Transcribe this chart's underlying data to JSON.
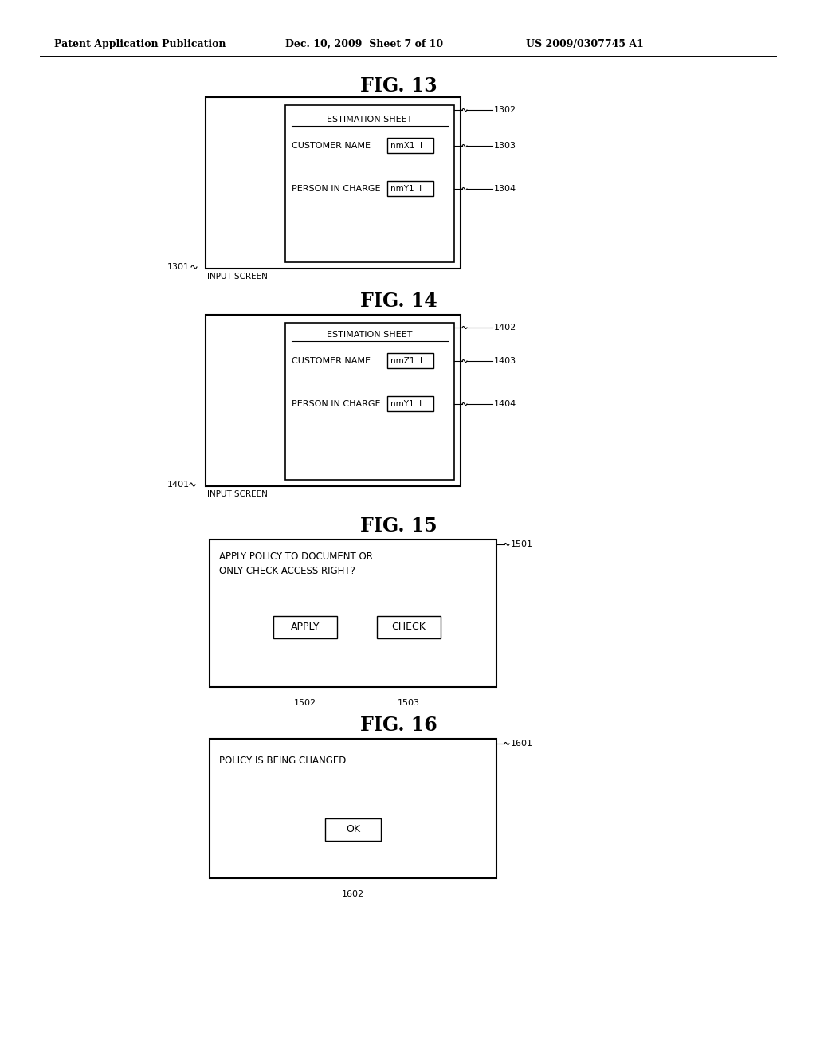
{
  "bg_color": "#ffffff",
  "header_left": "Patent Application Publication",
  "header_mid": "Dec. 10, 2009  Sheet 7 of 10",
  "header_right": "US 2009/0307745 A1",
  "fig13_title": "FIG. 13",
  "fig14_title": "FIG. 14",
  "fig15_title": "FIG. 15",
  "fig16_title": "FIG. 16",
  "estimation_sheet": "ESTIMATION SHEET",
  "customer_name": "CUSTOMER NAME",
  "person_in_charge": "PERSON IN CHARGE",
  "input_screen": "INPUT SCREEN",
  "fig13_customer_val": "nmX1  I",
  "fig13_person_val": "nmY1  I",
  "fig14_customer_val": "nmZ1  I",
  "fig14_person_val": "nmY1  I",
  "label_1302": "1302",
  "label_1303": "1303",
  "label_1304": "1304",
  "label_1301": "1301",
  "label_1402": "1402",
  "label_1403": "1403",
  "label_1404": "1404",
  "label_1401": "1401",
  "label_1501": "1501",
  "label_1502": "1502",
  "label_1503": "1503",
  "label_1601": "1601",
  "label_1602": "1602",
  "fig15_text_line1": "APPLY POLICY TO DOCUMENT OR",
  "fig15_text_line2": "ONLY CHECK ACCESS RIGHT?",
  "apply_btn": "APPLY",
  "check_btn": "CHECK",
  "fig16_text": "POLICY IS BEING CHANGED",
  "ok_btn": "OK"
}
